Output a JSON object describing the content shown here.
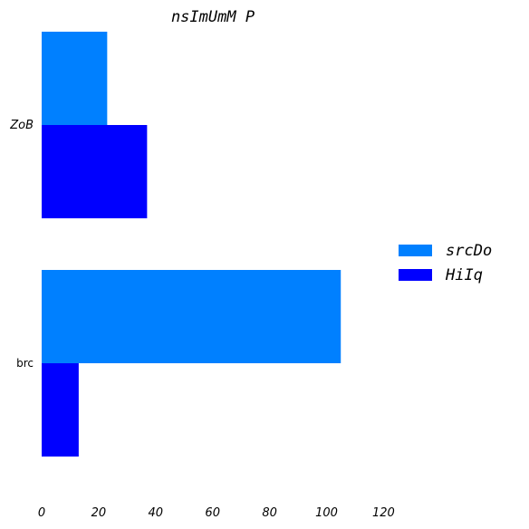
{
  "chart_data": {
    "type": "bar",
    "orientation": "horizontal",
    "title": "nsImUmM P",
    "categories": [
      "ZoB",
      "brc"
    ],
    "category_styles": [
      "italic",
      "normal"
    ],
    "series": [
      {
        "name": "srcDo",
        "color": "#0080ff",
        "values": [
          23,
          105
        ]
      },
      {
        "name": "HiIq",
        "color": "#0000ff",
        "values": [
          37,
          13
        ]
      }
    ],
    "xticks": [
      "0",
      "20",
      "40",
      "60",
      "80",
      "100",
      "120"
    ],
    "xlim": [
      0,
      120
    ],
    "xlabel": "",
    "ylabel": "",
    "grid": false,
    "legend_position": "right"
  }
}
